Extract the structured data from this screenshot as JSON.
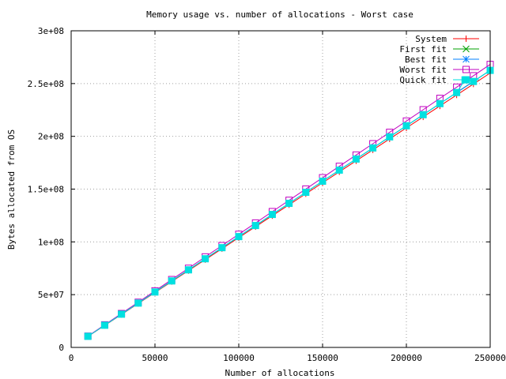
{
  "chart_data": {
    "type": "line",
    "title": "Memory usage vs. number of allocations - Worst case",
    "xlabel": "Number of allocations",
    "ylabel": "Bytes allocated from OS",
    "xlim": [
      0,
      250000
    ],
    "ylim": [
      0,
      300000000
    ],
    "x_ticks": [
      {
        "value": 0,
        "label": "0"
      },
      {
        "value": 50000,
        "label": "50000"
      },
      {
        "value": 100000,
        "label": "100000"
      },
      {
        "value": 150000,
        "label": "150000"
      },
      {
        "value": 200000,
        "label": "200000"
      },
      {
        "value": 250000,
        "label": "250000"
      }
    ],
    "y_ticks": [
      {
        "value": 0,
        "label": "0"
      },
      {
        "value": 50000000,
        "label": "5e+07"
      },
      {
        "value": 100000000,
        "label": "1e+08"
      },
      {
        "value": 150000000,
        "label": "1.5e+08"
      },
      {
        "value": 200000000,
        "label": "2e+08"
      },
      {
        "value": 250000000,
        "label": "2.5e+08"
      },
      {
        "value": 300000000,
        "label": "3e+08"
      }
    ],
    "grid": true,
    "legend_position": "top-right",
    "x": [
      10000,
      20000,
      30000,
      40000,
      50000,
      60000,
      70000,
      80000,
      90000,
      100000,
      110000,
      120000,
      130000,
      140000,
      150000,
      160000,
      170000,
      180000,
      190000,
      200000,
      210000,
      220000,
      230000,
      240000,
      250000
    ],
    "series": [
      {
        "name": "System",
        "color": "#ff0000",
        "marker": "plus",
        "values": [
          10400000,
          20800000,
          31200000,
          41600000,
          52000000,
          62400000,
          72800000,
          83200000,
          93600000,
          104000000,
          114400000,
          124800000,
          135200000,
          145600000,
          156000000,
          166400000,
          176800000,
          187200000,
          197600000,
          208000000,
          218400000,
          228800000,
          239200000,
          249600000,
          260000000
        ]
      },
      {
        "name": "First fit",
        "color": "#00a000",
        "marker": "cross",
        "values": [
          10500000,
          21000000,
          31500000,
          42000000,
          52500000,
          63000000,
          73500000,
          84000000,
          94500000,
          105000000,
          115500000,
          126000000,
          136500000,
          147000000,
          157500000,
          168000000,
          178500000,
          189000000,
          199500000,
          210000000,
          220500000,
          231000000,
          241500000,
          252000000,
          262500000
        ]
      },
      {
        "name": "Best fit",
        "color": "#0080ff",
        "marker": "star",
        "values": [
          10500000,
          21000000,
          31500000,
          42000000,
          52500000,
          63000000,
          73500000,
          84000000,
          94500000,
          105000000,
          115500000,
          126000000,
          136500000,
          147000000,
          157500000,
          168000000,
          178500000,
          189000000,
          199500000,
          210000000,
          220500000,
          231000000,
          241500000,
          252000000,
          262500000
        ]
      },
      {
        "name": "Worst fit",
        "color": "#c000c0",
        "marker": "square",
        "values": [
          10700000,
          21400000,
          32100000,
          42800000,
          53600000,
          64300000,
          75000000,
          85800000,
          96500000,
          107200000,
          117900000,
          128700000,
          139400000,
          150100000,
          160800000,
          171600000,
          182300000,
          193000000,
          203800000,
          214500000,
          225200000,
          236000000,
          246600000,
          257400000,
          268100000
        ]
      },
      {
        "name": "Quick fit",
        "color": "#00e0e0",
        "marker": "filled-square",
        "x": [
          10000,
          20000,
          30000,
          40000,
          50000,
          60000,
          70000,
          80000,
          90000,
          100000,
          110000,
          120000,
          130000,
          140000,
          150000,
          160000,
          170000,
          180000,
          190000,
          200000,
          210000,
          220000,
          230000,
          235000,
          240000,
          250000
        ],
        "values": [
          10500000,
          21000000,
          31500000,
          42000000,
          52500000,
          63000000,
          73500000,
          84000000,
          94500000,
          105000000,
          115500000,
          126000000,
          136500000,
          147000000,
          157500000,
          168000000,
          178500000,
          189000000,
          199500000,
          210000000,
          220500000,
          231000000,
          241500000,
          253500000,
          252000000,
          262500000
        ]
      }
    ]
  }
}
